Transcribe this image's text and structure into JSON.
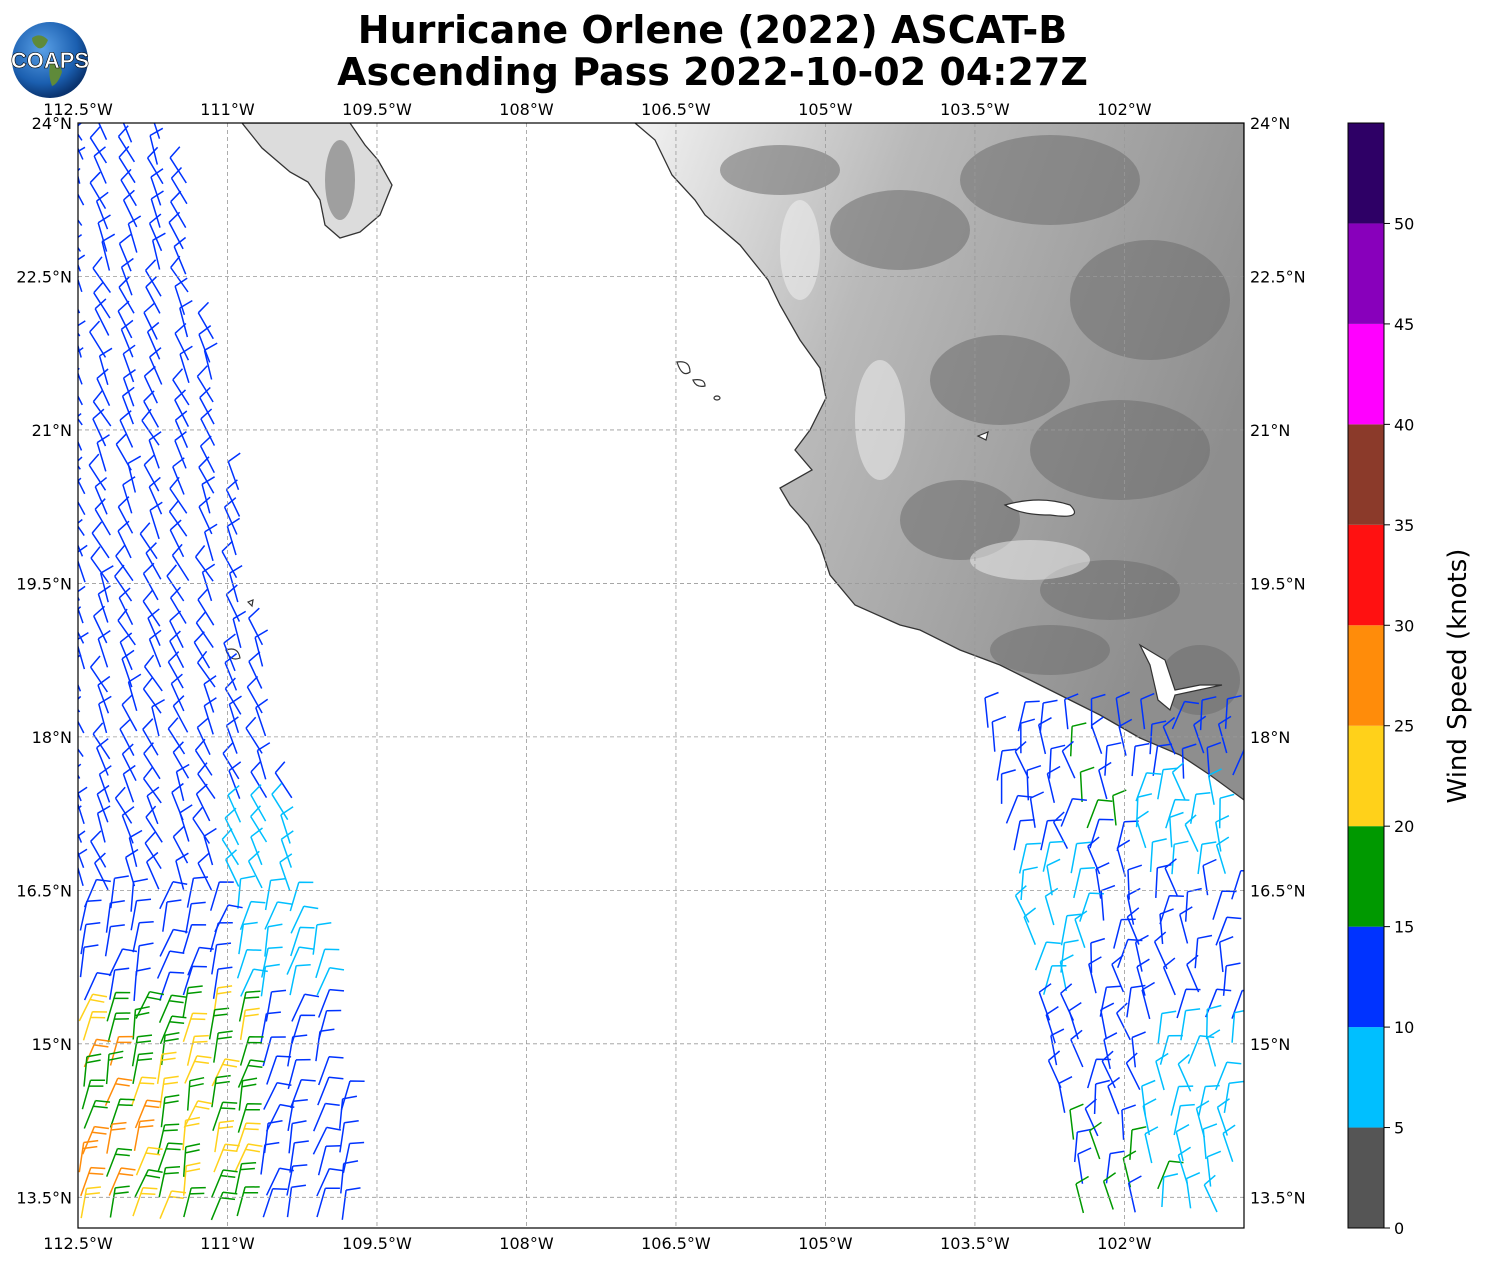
{
  "title": {
    "line1": "Hurricane Orlene (2022) ASCAT-B",
    "line2": "Ascending Pass 2022-10-02 04:27Z"
  },
  "logo": {
    "text": "COAPS",
    "icon": "globe-icon"
  },
  "map": {
    "lon_range": [
      -112.5,
      -100.8
    ],
    "lat_range": [
      13.2,
      24.0
    ],
    "lon_ticks": [
      {
        "value": -112.5,
        "label": "112.5°W"
      },
      {
        "value": -111.0,
        "label": "111°W"
      },
      {
        "value": -109.5,
        "label": "109.5°W"
      },
      {
        "value": -108.0,
        "label": "108°W"
      },
      {
        "value": -106.5,
        "label": "106.5°W"
      },
      {
        "value": -105.0,
        "label": "105°W"
      },
      {
        "value": -103.5,
        "label": "103.5°W"
      },
      {
        "value": -102.0,
        "label": "102°W"
      }
    ],
    "lat_ticks": [
      {
        "value": 24.0,
        "label": "24°N"
      },
      {
        "value": 22.5,
        "label": "22.5°N"
      },
      {
        "value": 21.0,
        "label": "21°N"
      },
      {
        "value": 19.5,
        "label": "19.5°N"
      },
      {
        "value": 18.0,
        "label": "18°N"
      },
      {
        "value": 16.5,
        "label": "16.5°N"
      },
      {
        "value": 15.0,
        "label": "15°N"
      },
      {
        "value": 13.5,
        "label": "13.5°N"
      }
    ],
    "land_color": "#e6e6e6",
    "coast_color": "#333333"
  },
  "colorbar": {
    "label": "Wind Speed (knots)",
    "ticks": [
      "0",
      "5",
      "10",
      "15",
      "20",
      "25",
      "30",
      "35",
      "40",
      "45",
      "50"
    ],
    "colors": [
      "#555555",
      "#00bfff",
      "#0033ff",
      "#009900",
      "#ffd11a",
      "#ff8c0a",
      "#ff1111",
      "#8b3a2a",
      "#ff00ff",
      "#8800bb",
      "#2e0066"
    ]
  }
}
